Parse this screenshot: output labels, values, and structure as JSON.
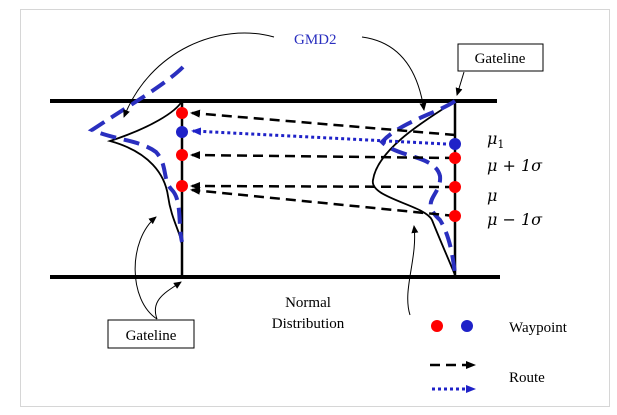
{
  "labels": {
    "gmd2": "GMD2",
    "gateline_top": "Gateline",
    "gateline_bottom": "Gateline",
    "normal_distribution_line1": "Normal",
    "normal_distribution_line2": "Distribution"
  },
  "math_labels": {
    "mu1_base": "μ",
    "mu1_sub": "1",
    "mu_plus": "μ + 1σ",
    "mu": "μ",
    "mu_minus": "μ − 1σ"
  },
  "legend": {
    "waypoint": "Waypoint",
    "route": "Route"
  },
  "colors": {
    "red": "#ff0000",
    "blue": "#1f22c8",
    "gmd_blue": "#2a2fbf",
    "black": "#000000"
  }
}
